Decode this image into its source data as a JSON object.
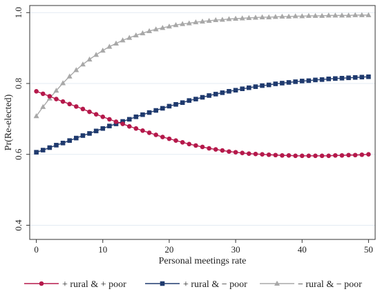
{
  "chart_data": {
    "type": "line",
    "xlabel": "Personal meetings rate",
    "ylabel": "Pr(Re-elected)",
    "xlim": [
      -1,
      51
    ],
    "ylim": [
      0.36,
      1.02
    ],
    "x_ticks": [
      0,
      10,
      20,
      30,
      40,
      50
    ],
    "x_tick_labels": [
      "0",
      "10",
      "20",
      "30",
      "40",
      "50"
    ],
    "y_ticks": [
      0.4,
      0.6,
      0.8,
      1.0
    ],
    "y_tick_labels": [
      "0.4",
      "0.6",
      "0.8",
      "1.0"
    ],
    "grid": "horizontal",
    "legend_position": "bottom",
    "x": [
      0,
      1,
      2,
      3,
      4,
      5,
      6,
      7,
      8,
      9,
      10,
      11,
      12,
      13,
      14,
      15,
      16,
      17,
      18,
      19,
      20,
      21,
      22,
      23,
      24,
      25,
      26,
      27,
      28,
      29,
      30,
      31,
      32,
      33,
      34,
      35,
      36,
      37,
      38,
      39,
      40,
      41,
      42,
      43,
      44,
      45,
      46,
      47,
      48,
      49,
      50
    ],
    "series": [
      {
        "name": "+ rural & + poor",
        "color": "#b5194b",
        "marker": "circle",
        "values": [
          0.778,
          0.771,
          0.764,
          0.756,
          0.749,
          0.742,
          0.735,
          0.728,
          0.72,
          0.713,
          0.706,
          0.699,
          0.692,
          0.686,
          0.679,
          0.673,
          0.667,
          0.661,
          0.655,
          0.649,
          0.644,
          0.639,
          0.634,
          0.629,
          0.625,
          0.621,
          0.617,
          0.614,
          0.611,
          0.608,
          0.606,
          0.604,
          0.602,
          0.601,
          0.6,
          0.599,
          0.598,
          0.597,
          0.597,
          0.596,
          0.596,
          0.596,
          0.596,
          0.596,
          0.596,
          0.597,
          0.597,
          0.598,
          0.598,
          0.599,
          0.6
        ]
      },
      {
        "name": "+ rural & − poor",
        "color": "#1f3a6e",
        "marker": "square",
        "values": [
          0.606,
          0.612,
          0.619,
          0.626,
          0.632,
          0.639,
          0.646,
          0.653,
          0.659,
          0.666,
          0.673,
          0.68,
          0.686,
          0.693,
          0.699,
          0.706,
          0.712,
          0.718,
          0.724,
          0.73,
          0.736,
          0.741,
          0.746,
          0.752,
          0.756,
          0.761,
          0.766,
          0.77,
          0.774,
          0.778,
          0.781,
          0.785,
          0.788,
          0.791,
          0.794,
          0.796,
          0.799,
          0.801,
          0.803,
          0.805,
          0.807,
          0.808,
          0.81,
          0.811,
          0.813,
          0.814,
          0.815,
          0.816,
          0.817,
          0.818,
          0.819
        ]
      },
      {
        "name": "− rural & − poor",
        "color": "#a8a8a8",
        "marker": "triangle",
        "values": [
          0.708,
          0.734,
          0.758,
          0.78,
          0.801,
          0.82,
          0.838,
          0.854,
          0.868,
          0.881,
          0.893,
          0.904,
          0.913,
          0.922,
          0.929,
          0.936,
          0.942,
          0.948,
          0.953,
          0.957,
          0.961,
          0.965,
          0.968,
          0.97,
          0.973,
          0.975,
          0.977,
          0.979,
          0.98,
          0.982,
          0.983,
          0.984,
          0.985,
          0.986,
          0.987,
          0.987,
          0.988,
          0.989,
          0.989,
          0.99,
          0.99,
          0.991,
          0.991,
          0.991,
          0.992,
          0.992,
          0.992,
          0.992,
          0.993,
          0.993,
          0.993
        ]
      }
    ]
  }
}
